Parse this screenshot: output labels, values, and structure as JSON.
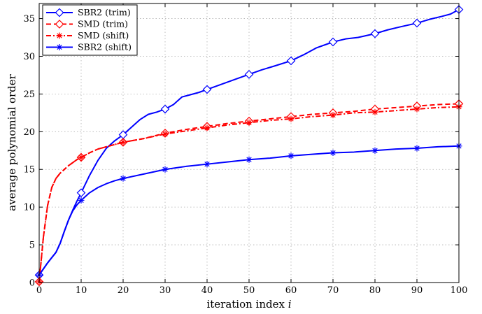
{
  "chart_data": {
    "type": "line",
    "xlabel": "iteration index",
    "xlabel_italic": "i",
    "ylabel": "average polynomial order",
    "xlim": [
      0,
      100
    ],
    "ylim": [
      0,
      37
    ],
    "xticks": [
      0,
      10,
      20,
      30,
      40,
      50,
      60,
      70,
      80,
      90,
      100
    ],
    "yticks": [
      0,
      5,
      10,
      15,
      20,
      25,
      30,
      35
    ],
    "grid": true,
    "legend_position": "top-left",
    "series": [
      {
        "name": "SBR2 (trim)",
        "color": "#0000ff",
        "dash": "solid",
        "marker": "diamond",
        "x": [
          0,
          1,
          2,
          3,
          4,
          5,
          6,
          7,
          8,
          9,
          10,
          12,
          14,
          16,
          18,
          20,
          22,
          24,
          26,
          28,
          30,
          32,
          34,
          36,
          38,
          40,
          43,
          46,
          50,
          53,
          56,
          60,
          63,
          66,
          70,
          73,
          76,
          80,
          83,
          86,
          90,
          93,
          96,
          98,
          100
        ],
        "y": [
          1.0,
          1.8,
          2.6,
          3.3,
          4.0,
          5.2,
          6.8,
          8.3,
          9.6,
          10.8,
          11.9,
          14.2,
          16.2,
          17.8,
          18.8,
          19.6,
          20.6,
          21.6,
          22.3,
          22.6,
          23.0,
          23.6,
          24.6,
          24.9,
          25.2,
          25.6,
          26.2,
          26.8,
          27.6,
          28.2,
          28.7,
          29.4,
          30.2,
          31.1,
          31.9,
          32.3,
          32.5,
          33.0,
          33.5,
          33.9,
          34.4,
          34.9,
          35.3,
          35.6,
          36.2
        ],
        "marker_x": [
          0,
          10,
          20,
          30,
          40,
          50,
          60,
          70,
          80,
          90,
          100
        ],
        "marker_y": [
          1.0,
          11.9,
          19.6,
          23.0,
          25.6,
          27.6,
          29.4,
          31.9,
          33.0,
          34.4,
          36.2
        ]
      },
      {
        "name": "SMD (trim)",
        "color": "#ff0000",
        "dash": "dashed",
        "marker": "diamond",
        "x": [
          0,
          1,
          2,
          3,
          4,
          5,
          6,
          7,
          8,
          9,
          10,
          12,
          14,
          16,
          18,
          20,
          25,
          30,
          35,
          40,
          45,
          50,
          55,
          60,
          65,
          70,
          75,
          80,
          85,
          90,
          95,
          100
        ],
        "y": [
          0.1,
          6.0,
          10.2,
          12.6,
          13.8,
          14.5,
          15.0,
          15.5,
          15.9,
          16.3,
          16.6,
          17.2,
          17.7,
          18.0,
          18.3,
          18.6,
          19.1,
          19.8,
          20.3,
          20.7,
          21.1,
          21.4,
          21.7,
          22.0,
          22.3,
          22.5,
          22.7,
          23.0,
          23.2,
          23.4,
          23.6,
          23.7
        ],
        "marker_x": [
          0,
          10,
          20,
          30,
          40,
          50,
          60,
          70,
          80,
          90,
          100
        ],
        "marker_y": [
          0.1,
          16.6,
          18.6,
          19.8,
          20.7,
          21.4,
          22.0,
          22.5,
          23.0,
          23.4,
          23.7
        ]
      },
      {
        "name": "SMD (shift)",
        "color": "#ff0000",
        "dash": "dashdot",
        "marker": "star",
        "x": [
          0,
          1,
          2,
          3,
          4,
          5,
          6,
          7,
          8,
          9,
          10,
          12,
          14,
          16,
          18,
          20,
          25,
          30,
          35,
          40,
          45,
          50,
          55,
          60,
          65,
          70,
          75,
          80,
          85,
          90,
          95,
          100
        ],
        "y": [
          0.1,
          6.0,
          10.2,
          12.6,
          13.8,
          14.5,
          15.0,
          15.5,
          15.9,
          16.3,
          16.6,
          17.2,
          17.7,
          18.0,
          18.3,
          18.6,
          19.1,
          19.7,
          20.1,
          20.5,
          20.9,
          21.2,
          21.5,
          21.7,
          22.0,
          22.2,
          22.5,
          22.6,
          22.8,
          23.0,
          23.2,
          23.3
        ],
        "marker_x": [
          0,
          10,
          20,
          30,
          40,
          50,
          60,
          70,
          80,
          90,
          100
        ],
        "marker_y": [
          0.1,
          16.6,
          18.6,
          19.7,
          20.5,
          21.2,
          21.7,
          22.2,
          22.6,
          23.0,
          23.3
        ]
      },
      {
        "name": "SBR2 (shift)",
        "color": "#0000ff",
        "dash": "solid",
        "marker": "star",
        "x": [
          0,
          1,
          2,
          3,
          4,
          5,
          6,
          7,
          8,
          9,
          10,
          12,
          14,
          16,
          18,
          20,
          25,
          30,
          35,
          40,
          45,
          50,
          55,
          60,
          65,
          70,
          75,
          80,
          85,
          90,
          95,
          100
        ],
        "y": [
          1.0,
          1.8,
          2.6,
          3.3,
          4.0,
          5.2,
          6.8,
          8.3,
          9.5,
          10.3,
          10.9,
          11.9,
          12.6,
          13.1,
          13.5,
          13.8,
          14.4,
          15.0,
          15.4,
          15.7,
          16.0,
          16.3,
          16.5,
          16.8,
          17.0,
          17.2,
          17.3,
          17.5,
          17.7,
          17.8,
          18.0,
          18.1
        ],
        "marker_x": [
          0,
          10,
          20,
          30,
          40,
          50,
          60,
          70,
          80,
          90,
          100
        ],
        "marker_y": [
          1.0,
          10.9,
          13.8,
          15.0,
          15.7,
          16.3,
          16.8,
          17.2,
          17.5,
          17.8,
          18.1
        ]
      }
    ]
  }
}
